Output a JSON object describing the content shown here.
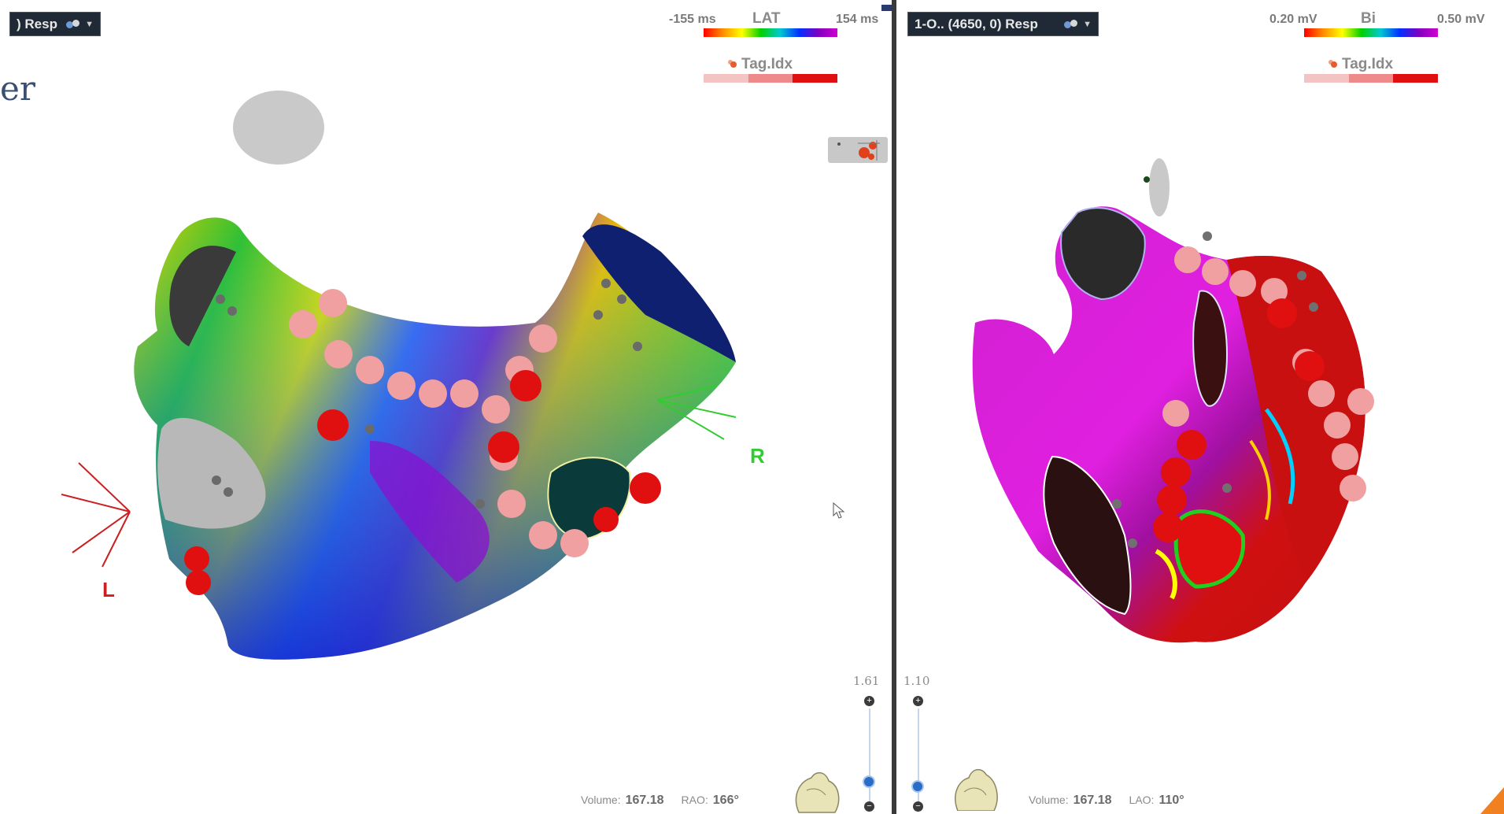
{
  "left_panel": {
    "map_selector_label": ") Resp",
    "partial_title": "er",
    "legend": {
      "min_label": "-155 ms",
      "title": "LAT",
      "max_label": "154 ms"
    },
    "tag_legend_title": "Tag.Idx",
    "tag_colors": [
      "#f4c4c4",
      "#ef8a8a",
      "#e01010"
    ],
    "direction_labels": {
      "left": "L",
      "right": "R"
    },
    "direction_colors": {
      "left": "#cc2020",
      "right": "#30cc30"
    },
    "zoom": "1.61",
    "zoom_fraction": 0.8,
    "status": {
      "volume_label": "Volume:",
      "volume_value": "167.18",
      "view_label": "RAO:",
      "view_value": "166°"
    }
  },
  "right_panel": {
    "map_selector_label": "1-O.. (4650, 0) Resp",
    "legend": {
      "min_label": "0.20 mV",
      "title": "Bi",
      "max_label": "0.50 mV"
    },
    "tag_legend_title": "Tag.Idx",
    "tag_colors": [
      "#f4c4c4",
      "#ef8a8a",
      "#e01010"
    ],
    "zoom": "1.10",
    "zoom_fraction": 0.85,
    "status": {
      "volume_label": "Volume:",
      "volume_value": "167.18",
      "view_label": "LAO:",
      "view_value": "110°"
    }
  },
  "icons": {
    "selector": "map-options-icon",
    "tool": "point-tag-tool-icon",
    "orientation": "heart-orientation-icon"
  },
  "accent_colors": {
    "selector_bg": "#1f2a36",
    "slider_knob": "#2b6cc6"
  }
}
